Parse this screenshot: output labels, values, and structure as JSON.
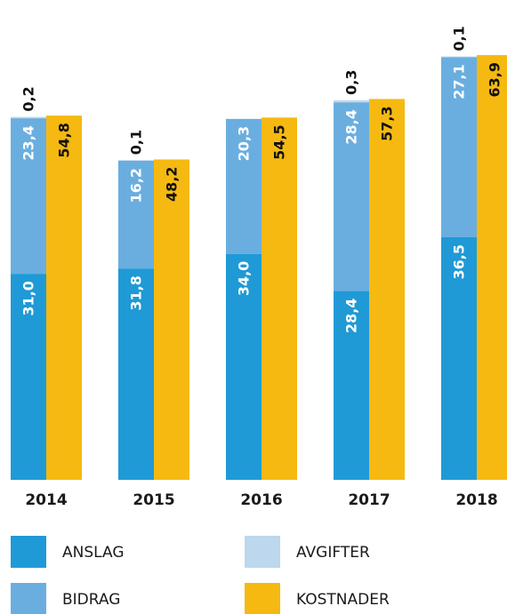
{
  "chart_data": {
    "type": "stacked-grouped-bar",
    "categories": [
      "2014",
      "2015",
      "2016",
      "2017",
      "2018"
    ],
    "series": [
      {
        "name": "ANSLAG",
        "color": "#1f9ad6",
        "stack": "a",
        "values": [
          31.0,
          31.8,
          34.0,
          28.4,
          36.5
        ],
        "value_labels": [
          "31,0",
          "31,8",
          "34,0",
          "28,4",
          "36,5"
        ]
      },
      {
        "name": "BIDRAG",
        "color": "#6aaee0",
        "stack": "a",
        "values": [
          23.4,
          16.2,
          20.3,
          28.4,
          27.1
        ],
        "value_labels": [
          "23,4",
          "16,2",
          "20,3",
          "28,4",
          "27,1"
        ]
      },
      {
        "name": "AVGIFTER",
        "color": "#bcd7ee",
        "stack": "a",
        "values": [
          0.2,
          0.1,
          null,
          0.3,
          0.1
        ],
        "value_labels": [
          "0,2",
          "0,1",
          null,
          "0,3",
          "0,1"
        ]
      },
      {
        "name": "KOSTNADER",
        "color": "#f6b911",
        "stack": "b",
        "values": [
          54.8,
          48.2,
          54.5,
          57.3,
          63.9
        ],
        "value_labels": [
          "54,8",
          "48,2",
          "54,5",
          "57,3",
          "63,9"
        ]
      }
    ]
  }
}
